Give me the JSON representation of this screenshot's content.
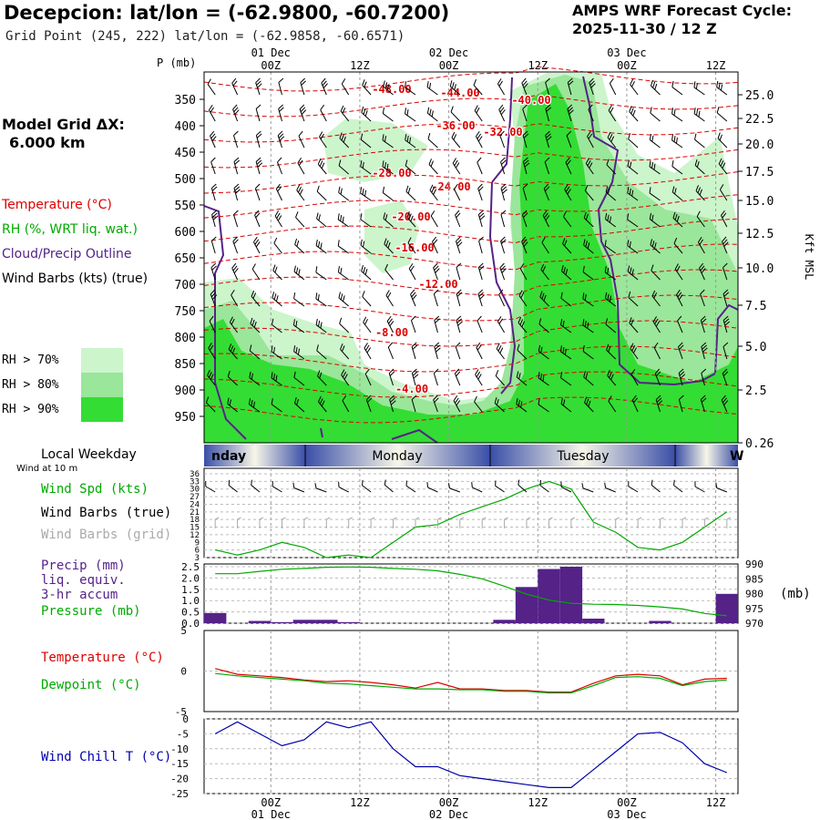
{
  "header": {
    "title": "Decepcion:  lat/lon = (-62.9800, -60.7200)",
    "grid_point": "Grid Point (245, 222) lat/lon = (-62.9858, -60.6571)",
    "cycle_label": "AMPS WRF Forecast Cycle:",
    "cycle_value": "2025-11-30 / 12  Z"
  },
  "model": {
    "label": "Model Grid ΔX:",
    "value": "6.000 km"
  },
  "legend": {
    "temperature": "Temperature (°C)",
    "rh": "RH (%, WRT liq. wat.)",
    "cloud": "Cloud/Precip Outline",
    "wind": "Wind Barbs (kts) (true)",
    "rh70": "RH > 70%",
    "rh80": "RH > 80%",
    "rh90": "RH > 90%",
    "rh_colors": [
      "#ccf5cc",
      "#9ae69a",
      "#33dd33"
    ]
  },
  "time_axis": {
    "top_dates": [
      "01 Dec",
      "02 Dec",
      "03 Dec"
    ],
    "ticks": [
      "00Z",
      "12Z",
      "00Z",
      "12Z",
      "00Z",
      "12Z"
    ],
    "bottom_ticks": [
      "00Z",
      "12Z",
      "00Z",
      "12Z",
      "00Z",
      "12Z"
    ],
    "bottom_dates": [
      "01 Dec",
      "02 Dec",
      "03 Dec"
    ]
  },
  "cross_section": {
    "p_label": "P (mb)",
    "pressure_levels": [
      "350",
      "400",
      "450",
      "500",
      "550",
      "600",
      "650",
      "700",
      "750",
      "800",
      "850",
      "900",
      "950"
    ],
    "height_labels": [
      "25.0",
      "22.5",
      "20.0",
      "17.5",
      "15.0",
      "12.5",
      "10.0",
      "7.5",
      "5.0",
      "2.5",
      "0.26"
    ],
    "height_axis_label": "Kft MSL",
    "isotherm_labels": [
      "-48.00",
      "-44.00",
      "-40.00",
      "-36.00",
      "-32.00",
      "-28.00",
      "-24.00",
      "-20.00",
      "-16.00",
      "-12.00",
      "-8.00",
      "-4.00"
    ]
  },
  "weekday": {
    "label": "Local Weekday",
    "days": [
      "nday",
      "Monday",
      "Tuesday",
      "W"
    ],
    "wind_at": "Wind at 10 m"
  },
  "panels": {
    "wind_speed": "Wind Spd (kts)",
    "wind_barbs_true": "Wind Barbs (true)",
    "wind_barbs_grid": "Wind Barbs (grid)",
    "precip": "Precip (mm)",
    "liq": "liq. equiv.",
    "accum": "3-hr accum",
    "pressure": "Pressure (mb)",
    "pressure_unit": "(mb)",
    "temperature": "Temperature (°C)",
    "dewpoint": "Dewpoint (°C)",
    "wind_chill": "Wind Chill T (°C)"
  },
  "colors": {
    "temperature": "#dd0000",
    "green": "#00aa00",
    "purple": "#552288",
    "blue": "#0000aa"
  },
  "chart_data": [
    {
      "type": "line",
      "name": "wind speed",
      "x": [
        "11-30 15Z",
        "11-30 18Z",
        "11-30 21Z",
        "12-01 00Z",
        "12-01 03Z",
        "12-01 06Z",
        "12-01 09Z",
        "12-01 12Z",
        "12-01 15Z",
        "12-01 18Z",
        "12-01 21Z",
        "12-02 00Z",
        "12-02 03Z",
        "12-02 06Z",
        "12-02 09Z",
        "12-02 12Z",
        "12-02 15Z",
        "12-02 18Z",
        "12-02 21Z",
        "12-03 00Z",
        "12-03 03Z",
        "12-03 06Z",
        "12-03 09Z",
        "12-03 12Z"
      ],
      "series": [
        {
          "values": [
            6,
            4,
            6,
            9,
            7,
            3,
            4,
            3,
            9,
            15,
            16,
            20,
            23,
            26,
            30,
            33,
            30,
            17,
            13,
            7,
            6,
            9,
            15,
            21
          ]
        }
      ],
      "ylabel": "Wind Spd (kts)",
      "yticks": [
        3,
        6,
        9,
        12,
        15,
        18,
        21,
        24,
        27,
        30,
        33,
        36
      ],
      "ylim": [
        3,
        36
      ]
    },
    {
      "type": "bar",
      "name": "precipitation",
      "x": [
        "11-30 15Z",
        "11-30 18Z",
        "11-30 21Z",
        "12-01 00Z",
        "12-01 03Z",
        "12-01 06Z",
        "12-01 09Z",
        "12-01 12Z",
        "12-01 15Z",
        "12-01 18Z",
        "12-01 21Z",
        "12-02 00Z",
        "12-02 03Z",
        "12-02 06Z",
        "12-02 09Z",
        "12-02 12Z",
        "12-02 15Z",
        "12-02 18Z",
        "12-02 21Z",
        "12-03 00Z",
        "12-03 03Z",
        "12-03 06Z",
        "12-03 09Z",
        "12-03 12Z"
      ],
      "values": [
        0.45,
        0,
        0.1,
        0.05,
        0.15,
        0.15,
        0.05,
        0,
        0,
        0,
        0,
        0,
        0,
        0.15,
        1.6,
        2.4,
        2.5,
        0.2,
        0,
        0,
        0.1,
        0,
        0,
        1.3
      ],
      "ylabel": "Precip (mm)",
      "yticks": [
        "0.0",
        "0.5",
        "1.0",
        "1.5",
        "2.0",
        "2.5"
      ],
      "ylim": [
        0,
        2.5
      ]
    },
    {
      "type": "line",
      "name": "pressure",
      "x": [
        "11-30 15Z",
        "11-30 18Z",
        "11-30 21Z",
        "12-01 00Z",
        "12-01 03Z",
        "12-01 06Z",
        "12-01 09Z",
        "12-01 12Z",
        "12-01 15Z",
        "12-01 18Z",
        "12-01 21Z",
        "12-02 00Z",
        "12-02 03Z",
        "12-02 06Z",
        "12-02 09Z",
        "12-02 12Z",
        "12-02 15Z",
        "12-02 18Z",
        "12-02 21Z",
        "12-03 00Z",
        "12-03 03Z",
        "12-03 06Z",
        "12-03 09Z",
        "12-03 12Z"
      ],
      "series": [
        {
          "values": [
            986.7,
            986.7,
            987.5,
            988.2,
            988.5,
            988.9,
            989.0,
            988.9,
            988.5,
            988.2,
            987.7,
            986.5,
            985.0,
            982.5,
            979.8,
            977.8,
            976.7,
            976.4,
            976.3,
            976.0,
            975.5,
            974.8,
            973.3,
            972.5
          ]
        }
      ],
      "ylabel": "Pressure (mb)",
      "yticks": [
        970,
        975,
        980,
        985,
        990
      ],
      "ylim": [
        970,
        990
      ]
    },
    {
      "type": "line",
      "name": "temperature and dewpoint",
      "x": [
        "11-30 15Z",
        "11-30 18Z",
        "11-30 21Z",
        "12-01 00Z",
        "12-01 03Z",
        "12-01 06Z",
        "12-01 09Z",
        "12-01 12Z",
        "12-01 15Z",
        "12-01 18Z",
        "12-01 21Z",
        "12-02 00Z",
        "12-02 03Z",
        "12-02 06Z",
        "12-02 09Z",
        "12-02 12Z",
        "12-02 15Z",
        "12-02 18Z",
        "12-02 21Z",
        "12-03 00Z",
        "12-03 03Z",
        "12-03 06Z",
        "12-03 09Z",
        "12-03 12Z"
      ],
      "series": [
        {
          "name": "Temperature (°C)",
          "values": [
            0.3,
            -0.4,
            -0.6,
            -0.8,
            -1.1,
            -1.3,
            -1.2,
            -1.4,
            -1.7,
            -2.1,
            -1.4,
            -2.2,
            -2.2,
            -2.4,
            -2.4,
            -2.6,
            -2.6,
            -1.5,
            -0.6,
            -0.4,
            -0.6,
            -1.7,
            -1.0,
            -0.9
          ]
        },
        {
          "name": "Dewpoint (°C)",
          "values": [
            -0.3,
            -0.6,
            -0.8,
            -1.0,
            -1.2,
            -1.5,
            -1.6,
            -1.8,
            -2.0,
            -2.2,
            -2.2,
            -2.3,
            -2.3,
            -2.5,
            -2.5,
            -2.7,
            -2.7,
            -1.8,
            -0.8,
            -0.7,
            -0.9,
            -1.8,
            -1.3,
            -1.1
          ]
        }
      ],
      "yticks": [
        -5,
        0,
        5
      ],
      "ylim": [
        -5,
        5
      ]
    },
    {
      "type": "line",
      "name": "wind chill",
      "x": [
        "11-30 15Z",
        "11-30 18Z",
        "11-30 21Z",
        "12-01 00Z",
        "12-01 03Z",
        "12-01 06Z",
        "12-01 09Z",
        "12-01 12Z",
        "12-01 15Z",
        "12-01 18Z",
        "12-01 21Z",
        "12-02 00Z",
        "12-02 03Z",
        "12-02 06Z",
        "12-02 09Z",
        "12-02 12Z",
        "12-02 15Z",
        "12-02 18Z",
        "12-02 21Z",
        "12-03 00Z",
        "12-03 03Z",
        "12-03 06Z",
        "12-03 09Z",
        "12-03 12Z"
      ],
      "series": [
        {
          "name": "Wind Chill T (°C)",
          "values": [
            -5,
            -1,
            -5,
            -9,
            -7,
            -1,
            -3,
            -1,
            -10,
            -16,
            -16,
            -19,
            -20,
            -21,
            -22,
            -23,
            -23,
            -17,
            -11,
            -5,
            -4.5,
            -8,
            -15,
            -18
          ]
        }
      ],
      "yticks": [
        0,
        -5,
        -10,
        -15,
        -20,
        -25
      ],
      "ylim": [
        -25,
        0
      ]
    }
  ]
}
